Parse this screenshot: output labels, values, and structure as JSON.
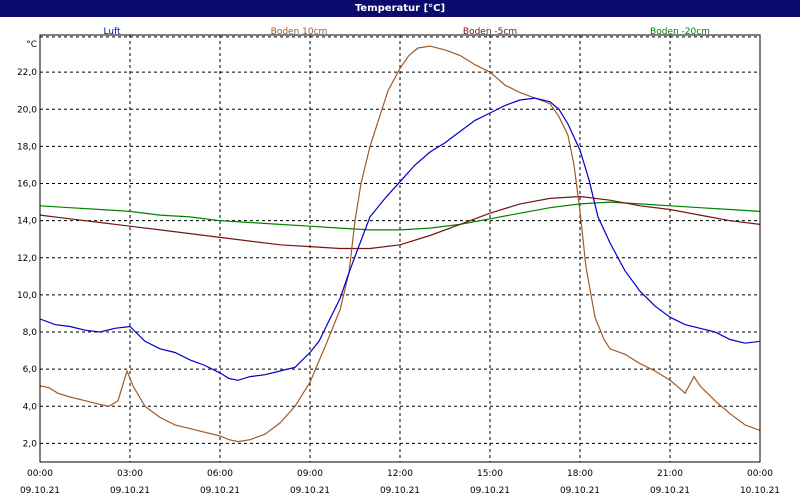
{
  "window_title": "Temperatur [°C]",
  "chart_data": {
    "type": "line",
    "title": "Temperatur [°C]",
    "yunit": "°C",
    "ylim": [
      1.0,
      24.0
    ],
    "yticks": [
      2.0,
      4.0,
      6.0,
      8.0,
      10.0,
      12.0,
      14.0,
      16.0,
      18.0,
      20.0,
      22.0
    ],
    "ytick_labels": [
      "2,0",
      "4,0",
      "6,0",
      "8,0",
      "10,0",
      "12,0",
      "14,0",
      "16,0",
      "18,0",
      "20,0",
      "22,0"
    ],
    "xlim_hours": [
      0,
      24
    ],
    "xticks": [
      {
        "hour": 0,
        "time": "00:00",
        "date": "09.10.21"
      },
      {
        "hour": 3,
        "time": "03:00",
        "date": "09.10.21"
      },
      {
        "hour": 6,
        "time": "06:00",
        "date": "09.10.21"
      },
      {
        "hour": 9,
        "time": "09:00",
        "date": "09.10.21"
      },
      {
        "hour": 12,
        "time": "12:00",
        "date": "09.10.21"
      },
      {
        "hour": 15,
        "time": "15:00",
        "date": "09.10.21"
      },
      {
        "hour": 18,
        "time": "18:00",
        "date": "09.10.21"
      },
      {
        "hour": 21,
        "time": "21:00",
        "date": "09.10.21"
      },
      {
        "hour": 24,
        "time": "00:00",
        "date": "10.10.21"
      }
    ],
    "grid": true,
    "legend_position": "top",
    "series": [
      {
        "name": "Luft",
        "color": "#0000c8",
        "points": [
          [
            0,
            8.7
          ],
          [
            0.5,
            8.4
          ],
          [
            1,
            8.3
          ],
          [
            1.5,
            8.1
          ],
          [
            2,
            8.0
          ],
          [
            2.5,
            8.2
          ],
          [
            3,
            8.3
          ],
          [
            3.5,
            7.5
          ],
          [
            4,
            7.1
          ],
          [
            4.5,
            6.9
          ],
          [
            5,
            6.5
          ],
          [
            5.5,
            6.2
          ],
          [
            6,
            5.8
          ],
          [
            6.3,
            5.5
          ],
          [
            6.6,
            5.4
          ],
          [
            7,
            5.6
          ],
          [
            7.5,
            5.7
          ],
          [
            8,
            5.9
          ],
          [
            8.5,
            6.1
          ],
          [
            9,
            6.9
          ],
          [
            9.3,
            7.5
          ],
          [
            9.6,
            8.5
          ],
          [
            10,
            9.8
          ],
          [
            10.3,
            11.2
          ],
          [
            10.6,
            12.5
          ],
          [
            11,
            14.2
          ],
          [
            11.5,
            15.2
          ],
          [
            12,
            16.1
          ],
          [
            12.5,
            17.0
          ],
          [
            13,
            17.7
          ],
          [
            13.5,
            18.2
          ],
          [
            14,
            18.8
          ],
          [
            14.5,
            19.4
          ],
          [
            15,
            19.8
          ],
          [
            15.5,
            20.2
          ],
          [
            16,
            20.5
          ],
          [
            16.5,
            20.6
          ],
          [
            17,
            20.4
          ],
          [
            17.3,
            20.0
          ],
          [
            17.6,
            19.2
          ],
          [
            18,
            17.8
          ],
          [
            18.3,
            16.2
          ],
          [
            18.6,
            14.2
          ],
          [
            19,
            12.8
          ],
          [
            19.5,
            11.3
          ],
          [
            20,
            10.2
          ],
          [
            20.5,
            9.4
          ],
          [
            21,
            8.8
          ],
          [
            21.5,
            8.4
          ],
          [
            22,
            8.2
          ],
          [
            22.5,
            8.0
          ],
          [
            23,
            7.6
          ],
          [
            23.5,
            7.4
          ],
          [
            24,
            7.5
          ]
        ]
      },
      {
        "name": "Boden 10cm",
        "color": "#a05a28",
        "points": [
          [
            0,
            5.1
          ],
          [
            0.3,
            5.0
          ],
          [
            0.6,
            4.7
          ],
          [
            1,
            4.5
          ],
          [
            1.5,
            4.3
          ],
          [
            2,
            4.1
          ],
          [
            2.3,
            4.0
          ],
          [
            2.6,
            4.3
          ],
          [
            2.9,
            5.9
          ],
          [
            3.1,
            5.1
          ],
          [
            3.5,
            4.0
          ],
          [
            4,
            3.4
          ],
          [
            4.5,
            3.0
          ],
          [
            5,
            2.8
          ],
          [
            5.5,
            2.6
          ],
          [
            6,
            2.4
          ],
          [
            6.3,
            2.2
          ],
          [
            6.6,
            2.1
          ],
          [
            7,
            2.2
          ],
          [
            7.5,
            2.5
          ],
          [
            8,
            3.1
          ],
          [
            8.5,
            4.0
          ],
          [
            9,
            5.3
          ],
          [
            9.5,
            7.2
          ],
          [
            10,
            9.2
          ],
          [
            10.3,
            11.2
          ],
          [
            10.5,
            14.0
          ],
          [
            10.7,
            16.0
          ],
          [
            11,
            18.0
          ],
          [
            11.3,
            19.5
          ],
          [
            11.6,
            21.0
          ],
          [
            12,
            22.2
          ],
          [
            12.3,
            22.9
          ],
          [
            12.6,
            23.3
          ],
          [
            13,
            23.4
          ],
          [
            13.5,
            23.2
          ],
          [
            14,
            22.9
          ],
          [
            14.5,
            22.4
          ],
          [
            15,
            22.0
          ],
          [
            15.5,
            21.3
          ],
          [
            16,
            20.9
          ],
          [
            16.5,
            20.6
          ],
          [
            17,
            20.3
          ],
          [
            17.3,
            19.6
          ],
          [
            17.6,
            18.6
          ],
          [
            17.8,
            17.0
          ],
          [
            18,
            14.5
          ],
          [
            18.2,
            11.5
          ],
          [
            18.5,
            8.8
          ],
          [
            18.8,
            7.6
          ],
          [
            19,
            7.1
          ],
          [
            19.5,
            6.8
          ],
          [
            20,
            6.3
          ],
          [
            20.5,
            5.9
          ],
          [
            21,
            5.4
          ],
          [
            21.3,
            5.0
          ],
          [
            21.5,
            4.7
          ],
          [
            21.8,
            5.6
          ],
          [
            22,
            5.1
          ],
          [
            22.5,
            4.3
          ],
          [
            23,
            3.6
          ],
          [
            23.5,
            3.0
          ],
          [
            24,
            2.7
          ]
        ]
      },
      {
        "name": "Boden -5cm",
        "color": "#781414",
        "points": [
          [
            0,
            14.3
          ],
          [
            1,
            14.1
          ],
          [
            2,
            13.9
          ],
          [
            3,
            13.7
          ],
          [
            4,
            13.5
          ],
          [
            5,
            13.3
          ],
          [
            6,
            13.1
          ],
          [
            7,
            12.9
          ],
          [
            8,
            12.7
          ],
          [
            9,
            12.6
          ],
          [
            10,
            12.5
          ],
          [
            11,
            12.5
          ],
          [
            12,
            12.7
          ],
          [
            13,
            13.2
          ],
          [
            14,
            13.8
          ],
          [
            15,
            14.4
          ],
          [
            16,
            14.9
          ],
          [
            17,
            15.2
          ],
          [
            18,
            15.3
          ],
          [
            19,
            15.1
          ],
          [
            20,
            14.8
          ],
          [
            21,
            14.6
          ],
          [
            22,
            14.3
          ],
          [
            23,
            14.0
          ],
          [
            24,
            13.8
          ]
        ]
      },
      {
        "name": "Boden -20cm",
        "color": "#008200",
        "points": [
          [
            0,
            14.8
          ],
          [
            1,
            14.7
          ],
          [
            2,
            14.6
          ],
          [
            3,
            14.5
          ],
          [
            4,
            14.3
          ],
          [
            5,
            14.2
          ],
          [
            6,
            14.0
          ],
          [
            7,
            13.9
          ],
          [
            8,
            13.8
          ],
          [
            9,
            13.7
          ],
          [
            10,
            13.6
          ],
          [
            11,
            13.5
          ],
          [
            12,
            13.5
          ],
          [
            13,
            13.6
          ],
          [
            14,
            13.8
          ],
          [
            15,
            14.1
          ],
          [
            16,
            14.4
          ],
          [
            17,
            14.7
          ],
          [
            18,
            14.9
          ],
          [
            19,
            15.0
          ],
          [
            20,
            14.9
          ],
          [
            21,
            14.8
          ],
          [
            22,
            14.7
          ],
          [
            23,
            14.6
          ],
          [
            24,
            14.5
          ]
        ]
      }
    ]
  }
}
